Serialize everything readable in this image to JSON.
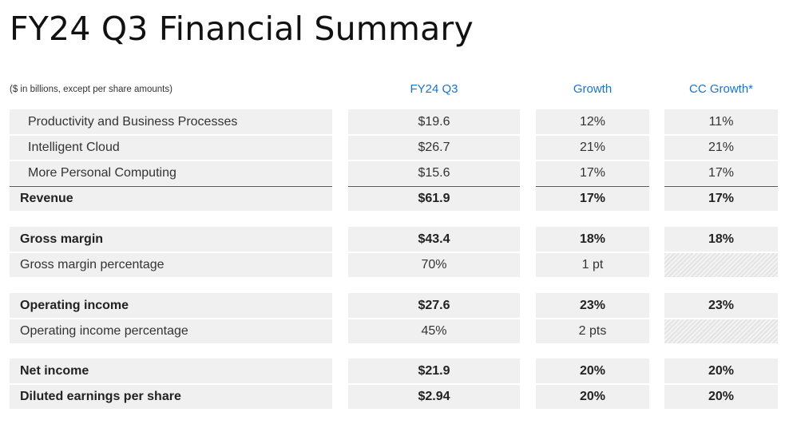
{
  "title": "FY24 Q3 Financial Summary",
  "note": "($ in billions, except per share amounts)",
  "headers": {
    "value": "FY24 Q3",
    "growth": "Growth",
    "cc_growth": "CC Growth*"
  },
  "rows": [
    {
      "label": "Productivity and Business Processes",
      "value": "$19.6",
      "growth": "12%",
      "cc": "11%"
    },
    {
      "label": "Intelligent Cloud",
      "value": "$26.7",
      "growth": "21%",
      "cc": "21%"
    },
    {
      "label": "More Personal Computing",
      "value": "$15.6",
      "growth": "17%",
      "cc": "17%"
    },
    {
      "label": "Revenue",
      "value": "$61.9",
      "growth": "17%",
      "cc": "17%"
    },
    {
      "label": "Gross margin",
      "value": "$43.4",
      "growth": "18%",
      "cc": "18%"
    },
    {
      "label": "Gross margin percentage",
      "value": "70%",
      "growth": "1 pt",
      "cc": ""
    },
    {
      "label": "Operating income",
      "value": "$27.6",
      "growth": "23%",
      "cc": "23%"
    },
    {
      "label": "Operating income percentage",
      "value": "45%",
      "growth": "2 pts",
      "cc": ""
    },
    {
      "label": "Net income",
      "value": "$21.9",
      "growth": "20%",
      "cc": "20%"
    },
    {
      "label": "Diluted earnings per share",
      "value": "$2.94",
      "growth": "20%",
      "cc": "20%"
    }
  ],
  "colors": {
    "accent": "#1a73c8",
    "row_bg": "#f0f0f0"
  }
}
